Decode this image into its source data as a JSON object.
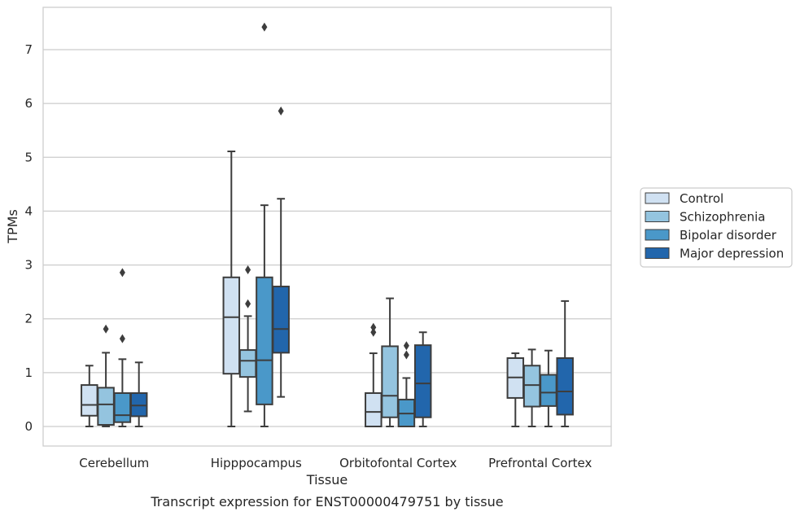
{
  "caption": "Transcript expression for ENST00000479751 by tissue",
  "chart_data": {
    "type": "box",
    "title": "",
    "xlabel": "Tissue",
    "ylabel": "TPMs",
    "ylim": [
      -0.35,
      7.8
    ],
    "yticks": [
      0,
      1,
      2,
      3,
      4,
      5,
      6,
      7
    ],
    "grid": "horizontal",
    "legend_position": "right",
    "categories": [
      "Cerebellum",
      "Hipppocampus",
      "Orbitofontal Cortex",
      "Prefrontal Cortex"
    ],
    "series": [
      {
        "name": "Control",
        "color": "#d0e1f2",
        "boxes": [
          {
            "whislo": 0.0,
            "q1": 0.2,
            "med": 0.4,
            "q3": 0.77,
            "whishi": 1.13,
            "fliers": []
          },
          {
            "whislo": 0.0,
            "q1": 0.98,
            "med": 2.03,
            "q3": 2.77,
            "whishi": 5.11,
            "fliers": []
          },
          {
            "whislo": 0.0,
            "q1": 0.0,
            "med": 0.27,
            "q3": 0.62,
            "whishi": 1.36,
            "fliers": [
              1.75,
              1.84
            ]
          },
          {
            "whislo": 0.0,
            "q1": 0.53,
            "med": 0.91,
            "q3": 1.27,
            "whishi": 1.36,
            "fliers": []
          }
        ]
      },
      {
        "name": "Schizophrenia",
        "color": "#94c4df",
        "boxes": [
          {
            "whislo": 0.0,
            "q1": 0.03,
            "med": 0.41,
            "q3": 0.72,
            "whishi": 1.37,
            "fliers": [
              1.81
            ]
          },
          {
            "whislo": 0.28,
            "q1": 0.92,
            "med": 1.22,
            "q3": 1.42,
            "whishi": 2.05,
            "fliers": [
              2.28,
              2.91
            ]
          },
          {
            "whislo": 0.0,
            "q1": 0.17,
            "med": 0.57,
            "q3": 1.49,
            "whishi": 2.38,
            "fliers": []
          },
          {
            "whislo": 0.0,
            "q1": 0.37,
            "med": 0.77,
            "q3": 1.13,
            "whishi": 1.43,
            "fliers": []
          }
        ]
      },
      {
        "name": "Bipolar disorder",
        "color": "#4a98c9",
        "boxes": [
          {
            "whislo": 0.0,
            "q1": 0.08,
            "med": 0.21,
            "q3": 0.62,
            "whishi": 1.25,
            "fliers": [
              1.63,
              2.86
            ]
          },
          {
            "whislo": 0.0,
            "q1": 0.41,
            "med": 1.23,
            "q3": 2.77,
            "whishi": 4.11,
            "fliers": [
              7.42
            ]
          },
          {
            "whislo": 0.0,
            "q1": 0.0,
            "med": 0.24,
            "q3": 0.5,
            "whishi": 0.9,
            "fliers": [
              1.33,
              1.5
            ]
          },
          {
            "whislo": 0.0,
            "q1": 0.38,
            "med": 0.63,
            "q3": 0.96,
            "whishi": 1.41,
            "fliers": []
          }
        ]
      },
      {
        "name": "Major depression",
        "color": "#2266ac",
        "boxes": [
          {
            "whislo": 0.0,
            "q1": 0.19,
            "med": 0.39,
            "q3": 0.62,
            "whishi": 1.19,
            "fliers": []
          },
          {
            "whislo": 0.55,
            "q1": 1.37,
            "med": 1.81,
            "q3": 2.6,
            "whishi": 4.23,
            "fliers": [
              5.86
            ]
          },
          {
            "whislo": 0.0,
            "q1": 0.17,
            "med": 0.8,
            "q3": 1.51,
            "whishi": 1.75,
            "fliers": []
          },
          {
            "whislo": 0.0,
            "q1": 0.22,
            "med": 0.65,
            "q3": 1.27,
            "whishi": 2.33,
            "fliers": []
          }
        ]
      }
    ]
  }
}
